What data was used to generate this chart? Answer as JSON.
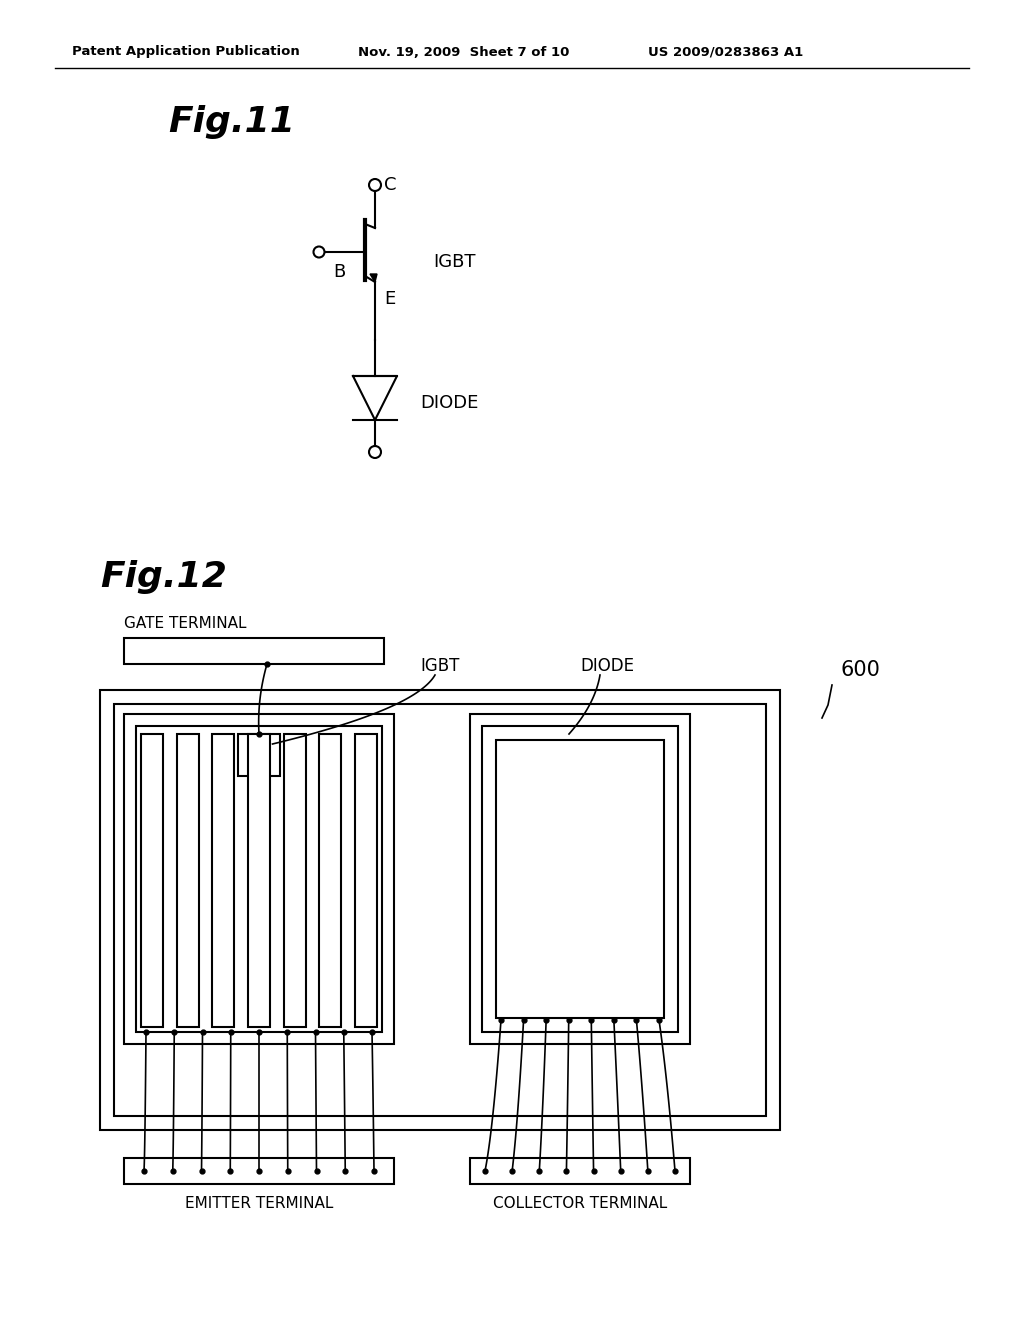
{
  "background_color": "#ffffff",
  "header_text": "Patent Application Publication",
  "header_date": "Nov. 19, 2009  Sheet 7 of 10",
  "header_patent": "US 2009/0283863 A1",
  "fig11_title": "Fig.11",
  "fig12_title": "Fig.12",
  "label_igbt": "IGBT",
  "label_diode": "DIODE",
  "label_C": "C",
  "label_B": "B",
  "label_E": "E",
  "label_gate": "GATE TERMINAL",
  "label_emitter": "EMITTER TERMINAL",
  "label_collector": "COLLECTOR TERMINAL",
  "label_600": "600",
  "label_igbt2": "IGBT",
  "label_diode2": "DIODE"
}
